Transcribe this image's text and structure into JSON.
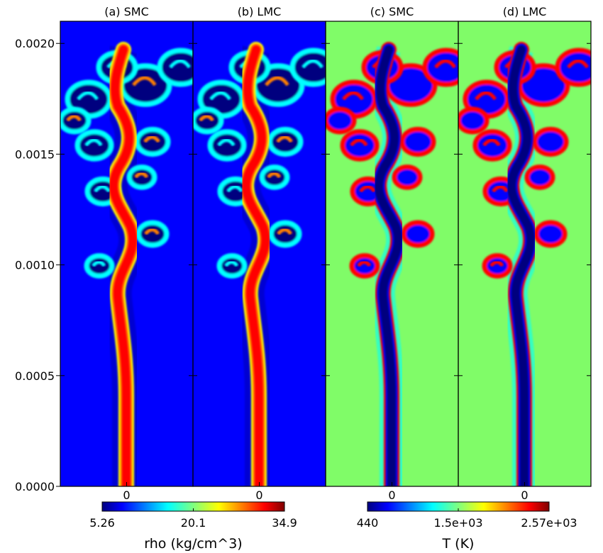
{
  "chart_data": {
    "type": "heatmap",
    "panels": [
      {
        "title": "(a) SMC",
        "field": "rho",
        "colormap": "jet",
        "background": "low",
        "jet_core": "high",
        "xtick": "0"
      },
      {
        "title": "(b) LMC",
        "field": "rho",
        "colormap": "jet",
        "background": "low",
        "jet_core": "high",
        "xtick": "0"
      },
      {
        "title": "(c) SMC",
        "field": "T",
        "colormap": "jet",
        "background": "mid",
        "jet_core": "low",
        "xtick": "0"
      },
      {
        "title": "(d) LMC",
        "field": "T",
        "colormap": "jet",
        "background": "mid",
        "jet_core": "low",
        "xtick": "0"
      }
    ],
    "y_axis": {
      "ylim": [
        0.0,
        0.0021
      ],
      "ticks": [
        0.0,
        0.0005,
        0.001,
        0.0015,
        0.002
      ],
      "tick_labels": [
        "0.0000",
        "0.0005",
        "0.0010",
        "0.0015",
        "0.0020"
      ]
    },
    "colorbars": [
      {
        "label": "rho (kg/cm^3)",
        "min": 5.26,
        "mid": 20.1,
        "max": 34.9,
        "tick_labels": [
          "5.26",
          "20.1",
          "34.9"
        ],
        "colormap": "jet"
      },
      {
        "label": "T (K)",
        "min": 440,
        "mid": 1500,
        "max": 2570,
        "tick_labels": [
          "440",
          "1.5e+03",
          "2.57e+03"
        ],
        "colormap": "jet"
      }
    ],
    "colors": {
      "jet_dark_blue": "#00007f",
      "jet_blue": "#0000ff",
      "jet_cyan": "#00ffff",
      "jet_green": "#7fff7f",
      "jet_yellow": "#ffff00",
      "jet_orange": "#ff7f00",
      "jet_red": "#ff0000",
      "jet_dark_red": "#7f0000",
      "background_temperature_green": "#80fc68"
    }
  }
}
